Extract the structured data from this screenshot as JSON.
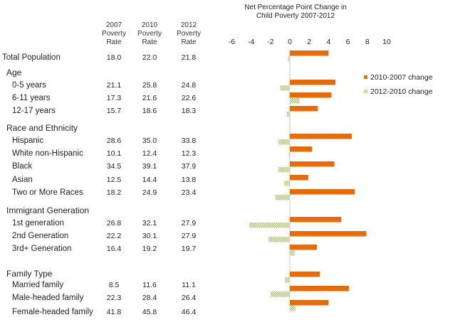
{
  "table": {
    "headers": [
      {
        "lines": [
          "2007",
          "Poverty",
          "Rate"
        ]
      },
      {
        "lines": [
          "2010",
          "Poverty",
          "Rate"
        ]
      },
      {
        "lines": [
          "2012",
          "Poverty",
          "Rate"
        ]
      }
    ],
    "rows": [
      {
        "label": "Total Population",
        "kind": "total",
        "v2007": "18.0",
        "v2010": "22.0",
        "v2012": "21.8"
      },
      {
        "label": "Age",
        "kind": "group"
      },
      {
        "label": "0-5 years",
        "kind": "item",
        "v2007": "21.1",
        "v2010": "25.8",
        "v2012": "24.8"
      },
      {
        "label": "6-11 years",
        "kind": "item",
        "v2007": "17.3",
        "v2010": "21.6",
        "v2012": "22.6"
      },
      {
        "label": "12-17 years",
        "kind": "item",
        "v2007": "15.7",
        "v2010": "18.6",
        "v2012": "18.3"
      },
      {
        "label": "Race and Ethnicity",
        "kind": "group"
      },
      {
        "label": "Hispanic",
        "kind": "item",
        "v2007": "28.6",
        "v2010": "35.0",
        "v2012": "33.8"
      },
      {
        "label": "White non-Hispanic",
        "kind": "item",
        "v2007": "10.1",
        "v2010": "12.4",
        "v2012": "12.3"
      },
      {
        "label": "Black",
        "kind": "item",
        "v2007": "34.5",
        "v2010": "39.1",
        "v2012": "37.9"
      },
      {
        "label": "Asian",
        "kind": "item",
        "v2007": "12.5",
        "v2010": "14.4",
        "v2012": "13.8"
      },
      {
        "label": "Two or More Races",
        "kind": "item",
        "v2007": "18.2",
        "v2010": "24.9",
        "v2012": "23.4"
      },
      {
        "label": "Immigrant Generation",
        "kind": "group"
      },
      {
        "label": "1st generation",
        "kind": "item",
        "v2007": "26.8",
        "v2010": "32.1",
        "v2012": "27.9"
      },
      {
        "label": "2nd Generation",
        "kind": "item",
        "v2007": "22.2",
        "v2010": "30.1",
        "v2012": "27.9"
      },
      {
        "label": "3rd+ Generation",
        "kind": "item",
        "v2007": "16.4",
        "v2010": "19.2",
        "v2012": "19.7"
      },
      {
        "label": "Family Type",
        "kind": "group"
      },
      {
        "label": "Married family",
        "kind": "item",
        "v2007": "8.5",
        "v2010": "11.6",
        "v2012": "11.1"
      },
      {
        "label": "Male-headed family",
        "kind": "item",
        "v2007": "22.3",
        "v2010": "28.4",
        "v2012": "26.4"
      },
      {
        "label": "Female-headed family",
        "kind": "item",
        "v2007": "41.8",
        "v2010": "45.8",
        "v2012": "46.4"
      }
    ]
  },
  "chart_data": {
    "type": "bar",
    "orientation": "horizontal",
    "title_lines": [
      "Net Percentage Point Change in",
      "Child Poverty 2007-2012"
    ],
    "xlim": [
      -6,
      10
    ],
    "xticks": [
      "-6",
      "-4",
      "-2",
      "0",
      "2",
      "4",
      "6",
      "8",
      "10"
    ],
    "tick_values": [
      -6,
      -4,
      -2,
      0,
      2,
      4,
      6,
      8,
      10
    ],
    "legend_position": "right",
    "categories": [
      "Total Population",
      "0-5 years",
      "6-11 years",
      "12-17 years",
      "Hispanic",
      "White non-Hispanic",
      "Black",
      "Asian",
      "Two or More Races",
      "1st generation",
      "2nd Generation",
      "3rd+ Generation",
      "Married family",
      "Male-headed family",
      "Female-headed family"
    ],
    "series": [
      {
        "name": "2010-2007  change",
        "color": "#E46C0A",
        "values": [
          4.0,
          4.7,
          4.3,
          2.9,
          6.4,
          2.3,
          4.6,
          1.9,
          6.7,
          5.3,
          7.9,
          2.8,
          3.1,
          6.1,
          4.0
        ]
      },
      {
        "name": "2012-2010  change",
        "color": "#9BBB59",
        "values": [
          -0.2,
          -1.0,
          1.0,
          -0.3,
          -1.2,
          -0.1,
          -1.2,
          -0.6,
          -1.5,
          -4.2,
          -2.2,
          0.5,
          -0.5,
          -2.0,
          0.6
        ]
      }
    ]
  }
}
